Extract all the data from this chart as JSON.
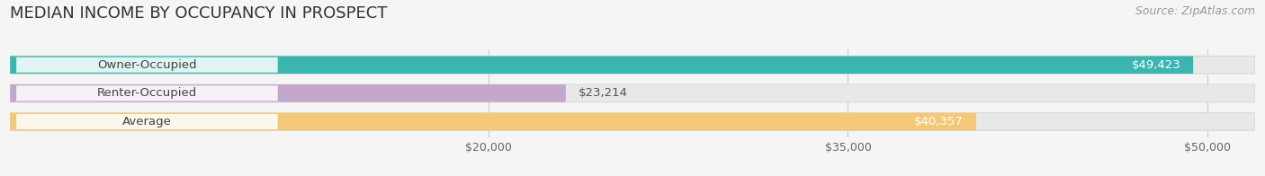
{
  "title": "MEDIAN INCOME BY OCCUPANCY IN PROSPECT",
  "source": "Source: ZipAtlas.com",
  "categories": [
    "Owner-Occupied",
    "Renter-Occupied",
    "Average"
  ],
  "values": [
    49423,
    23214,
    40357
  ],
  "labels": [
    "$49,423",
    "$23,214",
    "$40,357"
  ],
  "bar_colors": [
    "#3ab5b0",
    "#c4a8cc",
    "#f5c878"
  ],
  "background_color": "#f5f5f5",
  "bar_bg_color": "#e8e8e8",
  "bar_bg_edge_color": "#d8d8d8",
  "xlim_max": 52000,
  "xticks": [
    20000,
    35000,
    50000
  ],
  "xticklabels": [
    "$20,000",
    "$35,000",
    "$50,000"
  ],
  "title_fontsize": 13,
  "source_fontsize": 9,
  "label_fontsize": 9.5,
  "cat_fontsize": 9.5,
  "tick_fontsize": 9
}
